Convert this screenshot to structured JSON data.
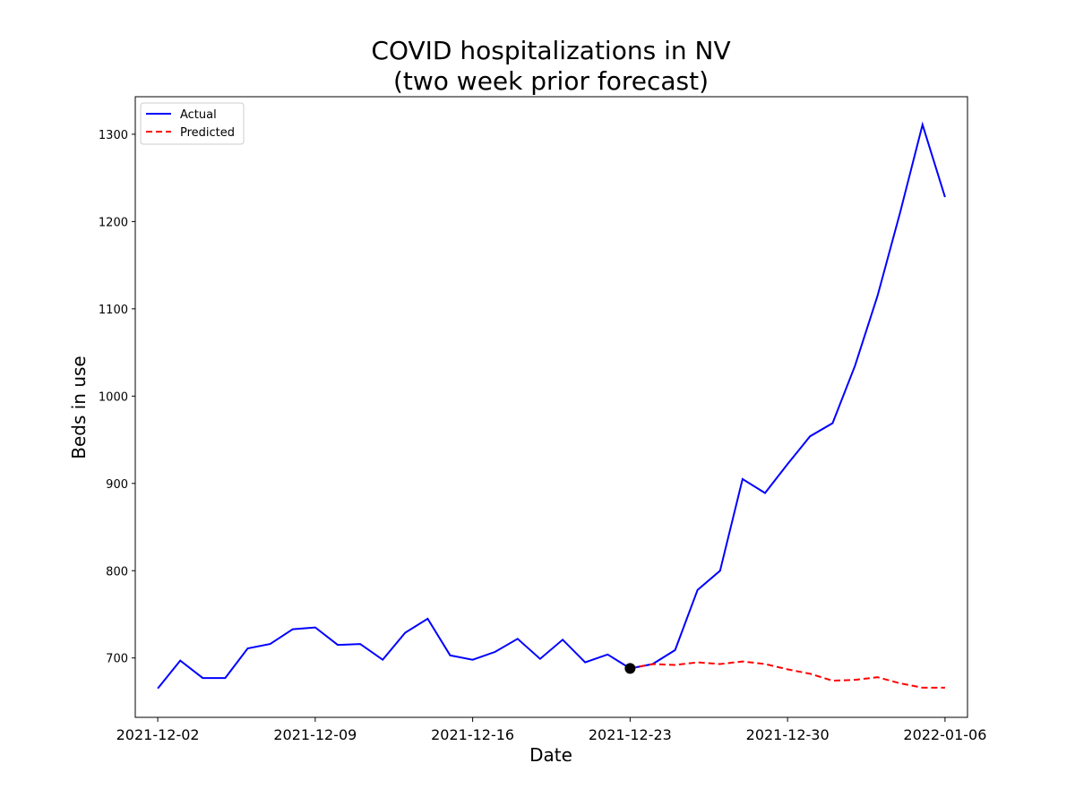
{
  "chart_data": {
    "type": "line",
    "title_lines": [
      "COVID hospitalizations in NV",
      "(two week prior forecast)"
    ],
    "xlabel": "Date",
    "ylabel": "Beds in use",
    "x_ticks": [
      "2021-12-02",
      "2021-12-09",
      "2021-12-16",
      "2021-12-23",
      "2021-12-30",
      "2022-01-06"
    ],
    "y_ticks": [
      700,
      800,
      900,
      1000,
      1100,
      1200,
      1300
    ],
    "xlim": [
      "2021-12-01",
      "2022-01-07"
    ],
    "ylim": [
      632,
      1343
    ],
    "legend": {
      "position": "upper-left"
    },
    "grid": false,
    "marker": {
      "date": "2021-12-23",
      "value": 688,
      "color": "#000000"
    },
    "series": [
      {
        "name": "Actual",
        "color": "#0000ff",
        "style": "solid",
        "x": [
          "2021-12-02",
          "2021-12-03",
          "2021-12-04",
          "2021-12-05",
          "2021-12-06",
          "2021-12-07",
          "2021-12-08",
          "2021-12-09",
          "2021-12-10",
          "2021-12-11",
          "2021-12-12",
          "2021-12-13",
          "2021-12-14",
          "2021-12-15",
          "2021-12-16",
          "2021-12-17",
          "2021-12-18",
          "2021-12-19",
          "2021-12-20",
          "2021-12-21",
          "2021-12-22",
          "2021-12-23",
          "2021-12-24",
          "2021-12-25",
          "2021-12-26",
          "2021-12-27",
          "2021-12-28",
          "2021-12-29",
          "2021-12-30",
          "2021-12-31",
          "2022-01-01",
          "2022-01-02",
          "2022-01-03",
          "2022-01-04",
          "2022-01-05",
          "2022-01-06"
        ],
        "values": [
          665,
          697,
          677,
          677,
          711,
          716,
          733,
          735,
          715,
          716,
          698,
          729,
          745,
          703,
          698,
          707,
          722,
          699,
          721,
          695,
          704,
          688,
          693,
          709,
          778,
          800,
          905,
          889,
          922,
          954,
          969,
          1035,
          1115,
          1210,
          1311,
          1228
        ]
      },
      {
        "name": "Predicted",
        "color": "#ff0000",
        "style": "dashed",
        "x": [
          "2021-12-23",
          "2021-12-24",
          "2021-12-25",
          "2021-12-26",
          "2021-12-27",
          "2021-12-28",
          "2021-12-29",
          "2021-12-30",
          "2021-12-31",
          "2022-01-01",
          "2022-01-02",
          "2022-01-03",
          "2022-01-04",
          "2022-01-05",
          "2022-01-06"
        ],
        "values": [
          688,
          693,
          692,
          695,
          693,
          696,
          693,
          687,
          682,
          674,
          675,
          678,
          671,
          666,
          666
        ]
      }
    ]
  }
}
